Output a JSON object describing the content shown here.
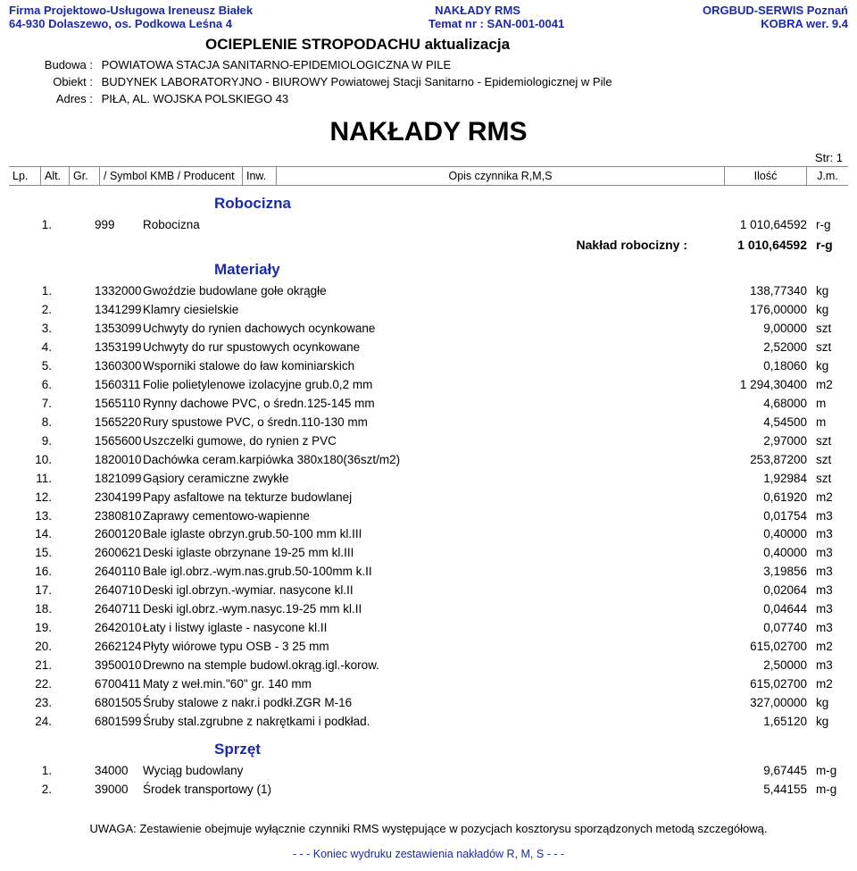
{
  "colors": {
    "accent": "#1a2aaa",
    "text": "#000000",
    "rule": "#888888",
    "bg": "#ffffff"
  },
  "header": {
    "left1": "Firma Projektowo-Usługowa Ireneusz Białek",
    "left2": "64-930 Dolaszewo, os. Podkowa Leśna 4",
    "center1": "NAKŁADY  RMS",
    "center2": "Temat nr : SAN-001-0041",
    "right1": "ORGBUD-SERWIS Poznań",
    "right2": "KOBRA wer. 9.4"
  },
  "title": "OCIEPLENIE STROPODACHU aktualizacja",
  "meta": {
    "budowa_lbl": "Budowa :",
    "budowa": "POWIATOWA STACJA SANITARNO-EPIDEMIOLOGICZNA W PILE",
    "obiekt_lbl": "Obiekt :",
    "obiekt": "BUDYNEK LABORATORYJNO - BIUROWY Powiatowej Stacji Sanitarno - Epidemiologicznej w Pile",
    "adres_lbl": "Adres :",
    "adres": "PIŁA, AL. WOJSKA POLSKIEGO 43"
  },
  "big_title": "NAKŁADY  RMS",
  "page_str": "Str: 1",
  "cols": {
    "lp": "Lp.",
    "alt": "Alt.",
    "gr": "Gr.",
    "symbol": "/  Symbol KMB  /  Producent",
    "inw": "Inw.",
    "opis": "Opis czynnika R,M,S",
    "ilosc": "Ilość",
    "jm": "J.m."
  },
  "sections": {
    "robocizna": {
      "title": "Robocizna",
      "rows": [
        {
          "lp": "1.",
          "code": "999",
          "desc": "Robocizna",
          "qty": "1 010,64592",
          "unit": "r-g"
        }
      ],
      "sum": {
        "label": "Nakład robocizny :",
        "qty": "1 010,64592",
        "unit": "r-g"
      }
    },
    "materialy": {
      "title": "Materiały",
      "rows": [
        {
          "lp": "1.",
          "code": "1332000",
          "desc": "Gwoździe budowlane gołe okrągłe",
          "qty": "138,77340",
          "unit": "kg"
        },
        {
          "lp": "2.",
          "code": "1341299",
          "desc": "Klamry ciesielskie",
          "qty": "176,00000",
          "unit": "kg"
        },
        {
          "lp": "3.",
          "code": "1353099",
          "desc": "Uchwyty do rynien dachowych ocynkowane",
          "qty": "9,00000",
          "unit": "szt"
        },
        {
          "lp": "4.",
          "code": "1353199",
          "desc": "Uchwyty do rur spustowych ocynkowane",
          "qty": "2,52000",
          "unit": "szt"
        },
        {
          "lp": "5.",
          "code": "1360300",
          "desc": "Wsporniki stalowe do ław kominiarskich",
          "qty": "0,18060",
          "unit": "kg"
        },
        {
          "lp": "6.",
          "code": "1560311",
          "desc": "Folie polietylenowe izolacyjne grub.0,2 mm",
          "qty": "1 294,30400",
          "unit": "m2"
        },
        {
          "lp": "7.",
          "code": "1565110",
          "desc": "Rynny dachowe PVC, o średn.125-145 mm",
          "qty": "4,68000",
          "unit": "m"
        },
        {
          "lp": "8.",
          "code": "1565220",
          "desc": "Rury spustowe PVC, o średn.110-130 mm",
          "qty": "4,54500",
          "unit": "m"
        },
        {
          "lp": "9.",
          "code": "1565600",
          "desc": "Uszczelki gumowe, do rynien z PVC",
          "qty": "2,97000",
          "unit": "szt"
        },
        {
          "lp": "10.",
          "code": "1820010",
          "desc": "Dachówka ceram.karpiówka 380x180(36szt/m2)",
          "qty": "253,87200",
          "unit": "szt"
        },
        {
          "lp": "11.",
          "code": "1821099",
          "desc": "Gąsiory ceramiczne zwykłe",
          "qty": "1,92984",
          "unit": "szt"
        },
        {
          "lp": "12.",
          "code": "2304199",
          "desc": "Papy asfaltowe na tekturze budowlanej",
          "qty": "0,61920",
          "unit": "m2"
        },
        {
          "lp": "13.",
          "code": "2380810",
          "desc": "Zaprawy  cementowo-wapienne",
          "qty": "0,01754",
          "unit": "m3"
        },
        {
          "lp": "14.",
          "code": "2600120",
          "desc": "Bale iglaste obrzyn.grub.50-100 mm kl.III",
          "qty": "0,40000",
          "unit": "m3"
        },
        {
          "lp": "15.",
          "code": "2600621",
          "desc": "Deski iglaste obrzynane 19-25 mm kl.III",
          "qty": "0,40000",
          "unit": "m3"
        },
        {
          "lp": "16.",
          "code": "2640110",
          "desc": "Bale igl.obrz.-wym.nas.grub.50-100mm k.II",
          "qty": "3,19856",
          "unit": "m3"
        },
        {
          "lp": "17.",
          "code": "2640710",
          "desc": "Deski igl.obrzyn.-wymiar. nasycone kl.II",
          "qty": "0,02064",
          "unit": "m3"
        },
        {
          "lp": "18.",
          "code": "2640711",
          "desc": "Deski igl.obrz.-wym.nasyc.19-25 mm kl.II",
          "qty": "0,04644",
          "unit": "m3"
        },
        {
          "lp": "19.",
          "code": "2642010",
          "desc": "Łaty i listwy iglaste - nasycone kl.II",
          "qty": "0,07740",
          "unit": "m3"
        },
        {
          "lp": "20.",
          "code": "2662124",
          "desc": "Płyty wiórowe typu OSB - 3     25 mm",
          "qty": "615,02700",
          "unit": "m2"
        },
        {
          "lp": "21.",
          "code": "3950010",
          "desc": "Drewno na stemple budowl.okrąg.igl.-korow.",
          "qty": "2,50000",
          "unit": "m3"
        },
        {
          "lp": "22.",
          "code": "6700411",
          "desc": "Maty z weł.min.\"60\" gr. 140 mm",
          "qty": "615,02700",
          "unit": "m2"
        },
        {
          "lp": "23.",
          "code": "6801505",
          "desc": "Śruby stalowe z nakr.i podkł.ZGR M-16",
          "qty": "327,00000",
          "unit": "kg"
        },
        {
          "lp": "24.",
          "code": "6801599",
          "desc": "Śruby stal.zgrubne z nakrętkami i podkład.",
          "qty": "1,65120",
          "unit": "kg"
        }
      ]
    },
    "sprzet": {
      "title": "Sprzęt",
      "rows": [
        {
          "lp": "1.",
          "code": "34000",
          "desc": "Wyciąg budowlany",
          "qty": "9,67445",
          "unit": "m-g"
        },
        {
          "lp": "2.",
          "code": "39000",
          "desc": "Środek transportowy (1)",
          "qty": "5,44155",
          "unit": "m-g"
        }
      ]
    }
  },
  "note": "UWAGA:  Zestawienie obejmuje wyłącznie czynniki RMS występujące w pozycjach kosztorysu sporządzonych metodą szczegółową.",
  "footer_end": "- - -   Koniec  wydruku  zestawienia  nakładów  R, M, S   - - -"
}
